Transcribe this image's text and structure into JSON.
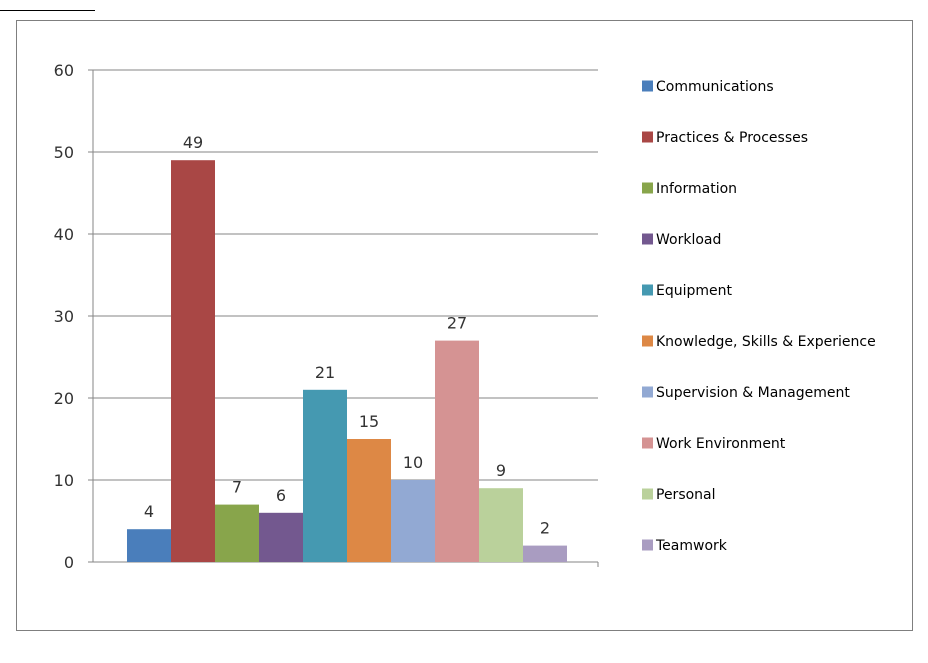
{
  "chart_data": {
    "type": "bar",
    "categories": [
      "Communications",
      "Practices & Processes",
      "Information",
      "Workload",
      "Equipment",
      "Knowledge, Skills & Experience",
      "Supervision & Management",
      "Work Environment",
      "Personal",
      "Teamwork"
    ],
    "values": [
      4,
      49,
      7,
      6,
      21,
      15,
      10,
      27,
      9,
      2
    ],
    "colors": [
      "#4a7ebb",
      "#a94745",
      "#88a54b",
      "#73588f",
      "#4599b1",
      "#dd8845",
      "#92a9d3",
      "#d59393",
      "#bad19b",
      "#a99cc1"
    ],
    "yticks": [
      0,
      10,
      20,
      30,
      40,
      50,
      60
    ],
    "ylim": [
      0,
      60
    ],
    "title": "",
    "xlabel": "",
    "ylabel": "",
    "grid": true,
    "legend_position": "right",
    "data_labels": true
  }
}
